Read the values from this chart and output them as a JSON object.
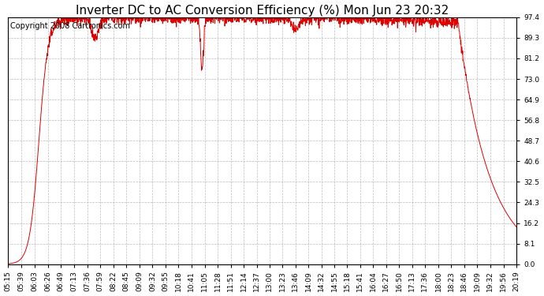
{
  "title": "Inverter DC to AC Conversion Efficiency (%) Mon Jun 23 20:32",
  "copyright": "Copyright 2008 Cartronics.com",
  "line_color": "#dd0000",
  "bg_color": "#ffffff",
  "plot_bg_color": "#ffffff",
  "grid_color": "#aaaaaa",
  "yticks": [
    0.0,
    8.1,
    16.2,
    24.3,
    32.5,
    40.6,
    48.7,
    56.8,
    64.9,
    73.0,
    81.2,
    89.3,
    97.4
  ],
  "ymin": 0.0,
  "ymax": 97.4,
  "xtick_labels": [
    "05:15",
    "05:39",
    "06:03",
    "06:26",
    "06:49",
    "07:13",
    "07:36",
    "07:59",
    "08:22",
    "08:45",
    "09:09",
    "09:32",
    "09:55",
    "10:18",
    "10:41",
    "11:05",
    "11:28",
    "11:51",
    "12:14",
    "12:37",
    "13:00",
    "13:23",
    "13:46",
    "14:09",
    "14:32",
    "14:55",
    "15:18",
    "15:41",
    "16:04",
    "16:27",
    "16:50",
    "17:13",
    "17:36",
    "18:00",
    "18:23",
    "18:46",
    "19:09",
    "19:32",
    "19:56",
    "20:19"
  ],
  "title_fontsize": 11,
  "copyright_fontsize": 7,
  "tick_fontsize": 6.5,
  "line_width": 0.7,
  "figwidth": 6.9,
  "figheight": 3.75,
  "dpi": 100
}
